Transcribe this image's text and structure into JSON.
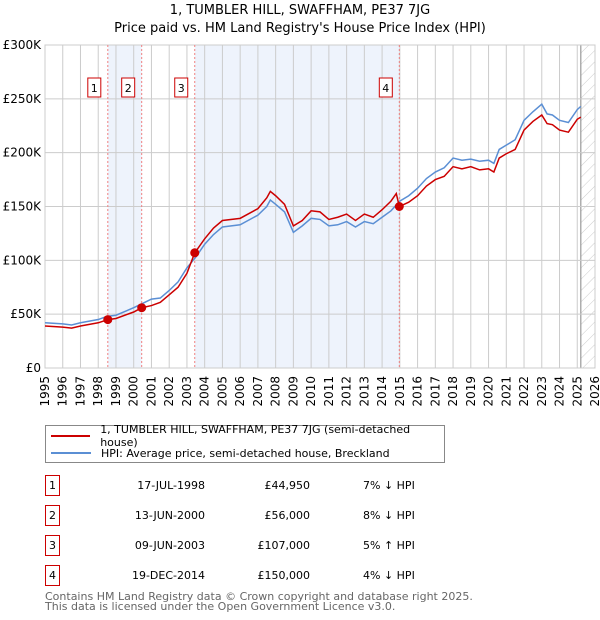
{
  "chart_data": {
    "type": "line",
    "title": "1, TUMBLER HILL, SWAFFHAM, PE37 7JG",
    "subtitle": "Price paid vs. HM Land Registry's House Price Index (HPI)",
    "xlim": [
      1995,
      2026
    ],
    "ylim": [
      0,
      300000
    ],
    "x_ticks": [
      "1995",
      "1996",
      "1997",
      "1998",
      "1999",
      "2000",
      "2001",
      "2002",
      "2003",
      "2004",
      "2005",
      "2006",
      "2007",
      "2008",
      "2009",
      "2010",
      "2011",
      "2012",
      "2013",
      "2014",
      "2015",
      "2016",
      "2017",
      "2018",
      "2019",
      "2020",
      "2021",
      "2022",
      "2023",
      "2024",
      "2025",
      "2026"
    ],
    "y_ticks": [
      {
        "v": 0,
        "label": "£0"
      },
      {
        "v": 50000,
        "label": "£50K"
      },
      {
        "v": 100000,
        "label": "£100K"
      },
      {
        "v": 150000,
        "label": "£150K"
      },
      {
        "v": 200000,
        "label": "£200K"
      },
      {
        "v": 250000,
        "label": "£250K"
      },
      {
        "v": 300000,
        "label": "£300K"
      }
    ],
    "grid": true,
    "forecast_start": 2025.2,
    "series": [
      {
        "name": "1, TUMBLER HILL, SWAFFHAM, PE37 7JG (semi-detached house)",
        "color": "#cc0000",
        "x": [
          1995,
          1996,
          1996.5,
          1997,
          1998,
          1998.54,
          1999,
          2000,
          2000.45,
          2001,
          2001.5,
          2002,
          2002.5,
          2003,
          2003.44,
          2004,
          2004.5,
          2005,
          2006,
          2007,
          2007.5,
          2007.7,
          2008,
          2008.5,
          2009,
          2009.5,
          2010,
          2010.5,
          2011,
          2011.5,
          2012,
          2012.5,
          2013,
          2013.5,
          2014,
          2014.5,
          2014.8,
          2014.97,
          2015.5,
          2016,
          2016.5,
          2017,
          2017.5,
          2018,
          2018.5,
          2019,
          2019.5,
          2020,
          2020.3,
          2020.6,
          2021,
          2021.5,
          2022,
          2022.5,
          2023,
          2023.3,
          2023.6,
          2024,
          2024.5,
          2025,
          2025.2
        ],
        "y": [
          39000,
          38000,
          37000,
          39000,
          42000,
          44950,
          46000,
          52000,
          56000,
          58000,
          61000,
          68000,
          75000,
          88000,
          107000,
          120000,
          130000,
          137000,
          139000,
          148000,
          158000,
          164000,
          160000,
          152000,
          132000,
          137000,
          146000,
          145000,
          138000,
          140000,
          143000,
          137000,
          143000,
          140000,
          147000,
          155000,
          162000,
          150000,
          154000,
          160000,
          169000,
          175000,
          178000,
          187000,
          185000,
          187000,
          184000,
          185000,
          182000,
          195000,
          199000,
          203000,
          221000,
          229000,
          235000,
          227000,
          226000,
          221000,
          219000,
          231000,
          233000
        ]
      },
      {
        "name": "HPI: Average price, semi-detached house, Breckland",
        "color": "#5b8fd4",
        "x": [
          1995,
          1996,
          1996.5,
          1997,
          1998,
          1998.5,
          1999,
          2000,
          2000.5,
          2001,
          2001.5,
          2002,
          2002.5,
          2003,
          2003.5,
          2004,
          2004.5,
          2005,
          2006,
          2007,
          2007.5,
          2007.7,
          2008,
          2008.5,
          2009,
          2009.5,
          2010,
          2010.5,
          2011,
          2011.5,
          2012,
          2012.5,
          2013,
          2013.5,
          2014,
          2014.5,
          2015,
          2015.5,
          2016,
          2016.5,
          2017,
          2017.5,
          2018,
          2018.5,
          2019,
          2019.5,
          2020,
          2020.3,
          2020.6,
          2021,
          2021.5,
          2022,
          2022.5,
          2023,
          2023.3,
          2023.6,
          2024,
          2024.5,
          2025,
          2025.2
        ],
        "y": [
          42000,
          41000,
          40000,
          42000,
          45000,
          48000,
          49000,
          56000,
          60000,
          64000,
          65000,
          72000,
          80000,
          93000,
          103000,
          115000,
          124000,
          131000,
          133000,
          142000,
          150000,
          156000,
          152000,
          145000,
          126000,
          132000,
          139000,
          138000,
          132000,
          133000,
          136000,
          131000,
          136000,
          134000,
          140000,
          146000,
          155000,
          160000,
          167000,
          176000,
          182000,
          186000,
          195000,
          193000,
          194000,
          192000,
          193000,
          190000,
          203000,
          207000,
          212000,
          230000,
          238000,
          245000,
          236000,
          235000,
          230000,
          228000,
          240000,
          243000
        ]
      }
    ],
    "sales": [
      {
        "n": "1",
        "x": 1998.54,
        "y": 44950,
        "date": "17-JUL-1998",
        "price": "£44,950",
        "hpi": "7% ↓ HPI"
      },
      {
        "n": "2",
        "x": 2000.45,
        "y": 56000,
        "date": "13-JUN-2000",
        "price": "£56,000",
        "hpi": "8% ↓ HPI"
      },
      {
        "n": "3",
        "x": 2003.44,
        "y": 107000,
        "date": "09-JUN-2003",
        "price": "£107,000",
        "hpi": "5% ↑ HPI"
      },
      {
        "n": "4",
        "x": 2014.97,
        "y": 150000,
        "date": "19-DEC-2014",
        "price": "£150,000",
        "hpi": "4% ↓ HPI"
      }
    ]
  },
  "footer": {
    "line1": "Contains HM Land Registry data © Crown copyright and database right 2025.",
    "line2": "This data is licensed under the Open Government Licence v3.0."
  }
}
